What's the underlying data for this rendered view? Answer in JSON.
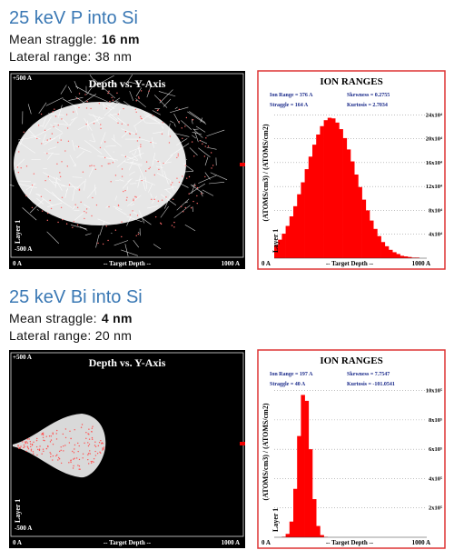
{
  "sections": [
    {
      "title": "25 keV P into Si",
      "straggle_label": "Mean straggle:",
      "straggle_value": "16 nm",
      "lateral": "Lateral range: 38 nm",
      "trajectory_plot": {
        "title": "Depth vs. Y-Axis",
        "top": "+500 A",
        "bottom": "-500 A",
        "layer": "Layer 1",
        "x_start": "0 A",
        "x_label": "-- Target Depth --",
        "x_end": "1000 A"
      },
      "ion_ranges": {
        "type": "histogram",
        "title": "ION RANGES",
        "stats": [
          "Ion Range  =  376 A",
          "Straggle  =  164 A",
          "Skewness  =  0.2755",
          "Kurtosis  =  2.7034"
        ],
        "y_axis_label": "(ATOMS/cm3) / (ATOMS/cm2)",
        "layer": "Layer 1",
        "x_start": "0 A",
        "x_label": "-- Target Depth --",
        "x_end": "1000 A",
        "color": "#ff0000",
        "xlim": [
          0,
          1000
        ],
        "ylim": [
          0,
          280000
        ],
        "yticks": [
          {
            "value": 40000,
            "label": "4x10⁴"
          },
          {
            "value": 80000,
            "label": "8x10⁴"
          },
          {
            "value": 120000,
            "label": "12x10⁴"
          },
          {
            "value": 160000,
            "label": "16x10⁴"
          },
          {
            "value": 200000,
            "label": "20x10⁴"
          },
          {
            "value": 240000,
            "label": "24x10⁴"
          }
        ],
        "bins": [
          0,
          25,
          50,
          75,
          100,
          125,
          150,
          175,
          200,
          225,
          250,
          275,
          300,
          325,
          350,
          375,
          400,
          425,
          450,
          475,
          500,
          525,
          550,
          575,
          600,
          625,
          650,
          675,
          700,
          725,
          750,
          775,
          800,
          825,
          850,
          875,
          900,
          925,
          950,
          975,
          1000
        ],
        "values": [
          22000,
          31000,
          41000,
          54000,
          70000,
          87000,
          107000,
          127000,
          149000,
          170000,
          190000,
          207000,
          221000,
          231000,
          235000,
          234000,
          227000,
          216000,
          201000,
          182000,
          162000,
          140000,
          119000,
          98000,
          80000,
          63000,
          49000,
          37000,
          27000,
          20000,
          14000,
          10000,
          7000,
          4000,
          3000,
          2000,
          1000,
          1000,
          0,
          0
        ]
      }
    },
    {
      "title": "25 keV Bi into Si",
      "straggle_label": "Mean straggle:",
      "straggle_value": "4 nm",
      "lateral": "Lateral range: 20 nm",
      "trajectory_plot": {
        "title": "Depth vs. Y-Axis",
        "top": "+500 A",
        "bottom": "-500 A",
        "layer": "Layer 1",
        "x_start": "0 A",
        "x_label": "-- Target Depth --",
        "x_end": "1000 A"
      },
      "ion_ranges": {
        "type": "histogram",
        "title": "ION RANGES",
        "stats": [
          "Ion Range  =  197 A",
          "Straggle  =  40 A",
          "Skewness  =  7.7547",
          "Kurtosis  =  -101.0541"
        ],
        "y_axis_label": "(ATOMS/cm3) / (ATOMS/cm2)",
        "layer": "Layer 1",
        "x_start": "0 A",
        "x_label": "-- Target Depth --",
        "x_end": "1000 A",
        "color": "#ff0000",
        "xlim": [
          0,
          1000
        ],
        "ylim": [
          0,
          1140000
        ],
        "yticks": [
          {
            "value": 200000,
            "label": "2x10⁵"
          },
          {
            "value": 400000,
            "label": "4x10⁵"
          },
          {
            "value": 600000,
            "label": "6x10⁵"
          },
          {
            "value": 800000,
            "label": "8x10⁵"
          },
          {
            "value": 1000000,
            "label": "10x10⁵"
          }
        ],
        "bins": [
          0,
          25,
          50,
          75,
          100,
          125,
          150,
          175,
          200,
          225,
          250,
          275,
          300,
          325,
          350,
          375,
          400,
          425,
          450,
          475,
          500,
          525,
          550,
          575,
          600,
          625,
          650,
          675,
          700,
          725,
          750,
          775,
          800,
          825,
          850,
          875,
          900,
          925,
          950,
          975,
          1000
        ],
        "values": [
          0,
          0,
          3500,
          23000,
          107000,
          330000,
          690000,
          970000,
          930000,
          600000,
          260000,
          77000,
          15000,
          2000,
          0,
          0,
          0,
          0,
          0,
          0,
          0,
          0,
          0,
          0,
          0,
          0,
          0,
          0,
          0,
          0,
          0,
          0,
          0,
          0,
          0,
          0,
          0,
          0,
          0,
          0
        ]
      }
    }
  ]
}
